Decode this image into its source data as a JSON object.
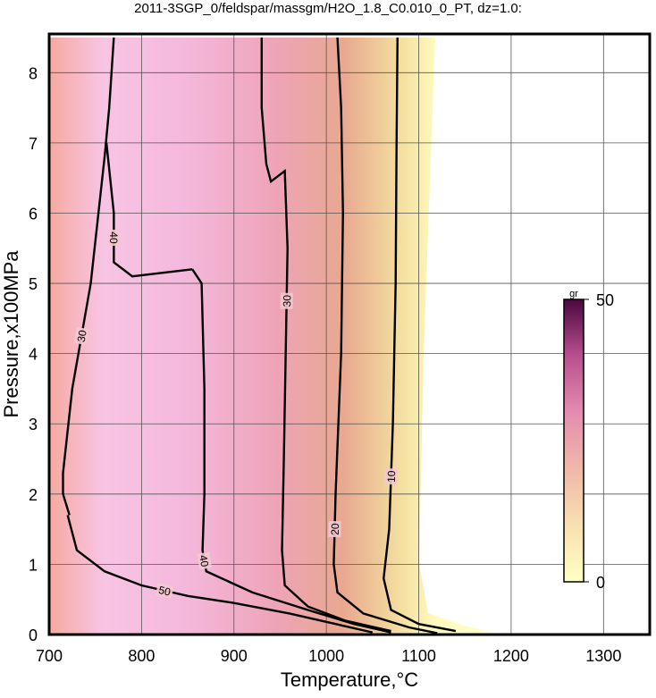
{
  "chart_data": {
    "type": "contour",
    "title": "2011-3SGP_0/feldspar/massgm/H2O_1.8_C0.010_0_PT, dz=1.0:",
    "xlabel": "Temperature,°C",
    "ylabel": "Pressure,x100MPa",
    "xlim": [
      700,
      1350
    ],
    "ylim": [
      0,
      8.5
    ],
    "xticks": [
      700,
      800,
      900,
      1000,
      1100,
      1200,
      1300
    ],
    "yticks": [
      0,
      1,
      2,
      3,
      4,
      5,
      6,
      7,
      8
    ],
    "grid": true,
    "line_color": "#000000",
    "contours": [
      {
        "level": 10,
        "x": [
          1077,
          1076,
          1075,
          1072,
          1068,
          1062,
          1070,
          1100,
          1140
        ],
        "y": [
          8.5,
          7,
          5,
          3,
          1.5,
          0.8,
          0.35,
          0.15,
          0.05
        ]
      },
      {
        "level": 20,
        "x": [
          1012,
          1016,
          1018,
          1016,
          1010,
          1008,
          1012,
          1040,
          1090,
          1120
        ],
        "y": [
          8.5,
          7.5,
          6,
          4,
          2,
          1,
          0.6,
          0.3,
          0.1,
          0.02
        ]
      },
      {
        "level": 30,
        "x": [
          930,
          930,
          935,
          940,
          955,
          958,
          956,
          954,
          952,
          955,
          980,
          1020,
          1070
        ],
        "y": [
          8.5,
          7.5,
          6.7,
          6.45,
          6.6,
          5.5,
          4,
          2.5,
          1.2,
          0.7,
          0.4,
          0.2,
          0.05
        ]
      },
      {
        "level": 40,
        "x": [
          855,
          865,
          868,
          868,
          866,
          870,
          920,
          980,
          1030,
          1070
        ],
        "y": [
          5.2,
          5.0,
          3.5,
          2,
          1.2,
          0.9,
          0.6,
          0.35,
          0.15,
          0.03
        ]
      },
      {
        "level": 50,
        "x": [
          720,
          730,
          760,
          800,
          850,
          900,
          960,
          1010,
          1050
        ],
        "y": [
          1.7,
          1.2,
          0.9,
          0.7,
          0.55,
          0.45,
          0.3,
          0.15,
          0.03
        ]
      },
      {
        "level": 30,
        "x": [
          770,
          765,
          760,
          745,
          725,
          715,
          715,
          722
        ],
        "y": [
          8.5,
          7.5,
          6.8,
          5.0,
          3.5,
          2.3,
          2.0,
          1.7
        ]
      },
      {
        "level": 40,
        "x": [
          762,
          770,
          770,
          790,
          855
        ],
        "y": [
          7,
          6,
          5.3,
          5.1,
          5.2
        ]
      }
    ],
    "colorbar": {
      "label": "gr",
      "lim": [
        0,
        50
      ],
      "ticks": [
        0,
        50
      ],
      "colors": [
        "#ffffc4",
        "#f8e0b0",
        "#f0b8a8",
        "#e48cb0",
        "#b8508c",
        "#4a0840"
      ]
    }
  }
}
